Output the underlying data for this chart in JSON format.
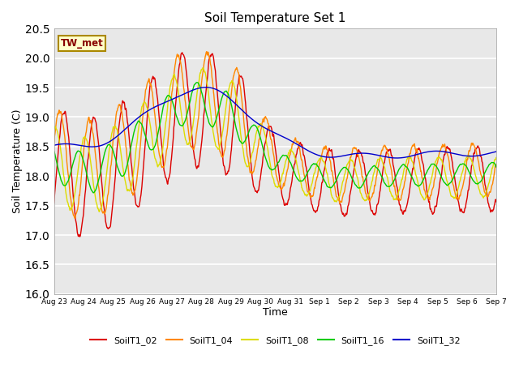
{
  "title": "Soil Temperature Set 1",
  "xlabel": "Time",
  "ylabel": "Soil Temperature (C)",
  "ylim": [
    16.0,
    20.5
  ],
  "yticks": [
    16.0,
    16.5,
    17.0,
    17.5,
    18.0,
    18.5,
    19.0,
    19.5,
    20.0,
    20.5
  ],
  "series_colors": [
    "#dd0000",
    "#ff8800",
    "#dddd00",
    "#00cc00",
    "#0000cc"
  ],
  "series_labels": [
    "SoilT1_02",
    "SoilT1_04",
    "SoilT1_08",
    "SoilT1_16",
    "SoilT1_32"
  ],
  "annotation_text": "TW_met",
  "annotation_box_color": "#ffffcc",
  "annotation_text_color": "#880000",
  "annotation_edge_color": "#aa8800",
  "background_color": "#ffffff",
  "plot_bg_color": "#e8e8e8",
  "grid_color": "#ffffff",
  "n_days": 15,
  "points_per_day": 96
}
